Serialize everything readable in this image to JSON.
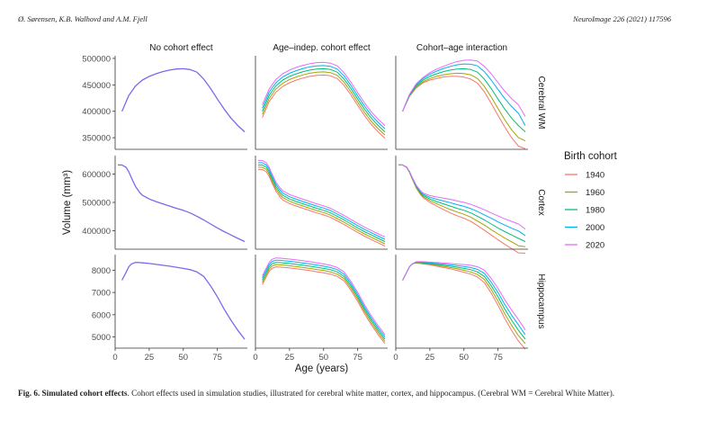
{
  "header": {
    "authors": "Ø. Sørensen, K.B. Walhovd and A.M. Fjell",
    "journal": "NeuroImage 226 (2021) 117596"
  },
  "caption": {
    "label": "Fig. 6.",
    "title": "Simulated cohort effects",
    "text": ". Cohort effects used in simulation studies, illustrated for cerebral white matter, cortex, and hippocampus. (Cerebral WM = Cerebral White Matter)."
  },
  "chart_data": {
    "type": "line",
    "column_titles": [
      "No cohort effect",
      "Age–indep. cohort effect",
      "Cohort–age interaction"
    ],
    "row_titles": [
      "Cerebral WM",
      "Cortex",
      "Hippocampus"
    ],
    "xlabel": "Age (years)",
    "ylabel": "Volume (mm³)",
    "xlim": [
      0,
      97
    ],
    "x_ticks": [
      0,
      25,
      50,
      75
    ],
    "grid": false,
    "legend": {
      "title": "Birth cohort",
      "placement": "right",
      "entries": [
        "1940",
        "1960",
        "1980",
        "2000",
        "2020"
      ],
      "colors": [
        "#F8766D",
        "#A3A500",
        "#00BF7D",
        "#00B0F6",
        "#E76BF3"
      ]
    },
    "no_cohort_color": "#7B68EE",
    "rows": [
      {
        "name": "Cerebral WM",
        "ylim": [
          328000,
          505000
        ],
        "y_ticks": [
          350000,
          400000,
          450000,
          500000
        ],
        "y_tick_labels": [
          "350000",
          "400000",
          "450000",
          "500000"
        ],
        "x": [
          5,
          10,
          15,
          20,
          25,
          30,
          35,
          40,
          45,
          50,
          55,
          60,
          65,
          70,
          75,
          80,
          85,
          90,
          95
        ],
        "baseline": [
          400000,
          430000,
          448000,
          459000,
          466000,
          471000,
          475000,
          478000,
          480000,
          480500,
          479000,
          474000,
          461000,
          443000,
          423000,
          404000,
          387000,
          373000,
          361000
        ],
        "indep_offsets": [
          -12000,
          -6000,
          0,
          6000,
          12000
        ],
        "interaction_offsets": [
          [
            0,
            -2000,
            -4000,
            -5000,
            -7000,
            -9000,
            -10000,
            -12000,
            -14000,
            -16000,
            -18000,
            -21000,
            -24000,
            -28000,
            -31000,
            -34000,
            -37000,
            -39000,
            -32000
          ],
          [
            0,
            -1000,
            -2000,
            -3000,
            -4000,
            -5000,
            -6000,
            -7000,
            -8000,
            -9000,
            -10000,
            -12000,
            -14000,
            -16000,
            -18000,
            -20000,
            -22000,
            -23000,
            -17000
          ],
          [
            0,
            0,
            0,
            0,
            0,
            0,
            0,
            0,
            0,
            0,
            0,
            0,
            0,
            0,
            0,
            0,
            0,
            0,
            0
          ],
          [
            0,
            1000,
            2000,
            3000,
            4000,
            5000,
            6000,
            7000,
            8000,
            9000,
            10000,
            12000,
            14000,
            16000,
            18000,
            20000,
            22000,
            23000,
            12000
          ],
          [
            0,
            2000,
            4000,
            5000,
            7000,
            9000,
            10000,
            12000,
            14000,
            16000,
            18000,
            21000,
            24000,
            28000,
            31000,
            34000,
            37000,
            39000,
            29000
          ]
        ]
      },
      {
        "name": "Cortex",
        "ylim": [
          335000,
          665000
        ],
        "y_ticks": [
          400000,
          500000,
          600000
        ],
        "y_tick_labels": [
          "400000",
          "500000",
          "600000"
        ],
        "x": [
          2,
          5,
          8,
          10,
          12,
          15,
          18,
          20,
          25,
          30,
          35,
          40,
          45,
          50,
          55,
          60,
          65,
          70,
          75,
          80,
          85,
          90,
          95
        ],
        "baseline": [
          632000,
          632000,
          624000,
          608000,
          586000,
          556000,
          535000,
          525000,
          512000,
          503000,
          495000,
          487000,
          479000,
          472000,
          463000,
          451000,
          438000,
          424000,
          410000,
          397000,
          385000,
          373000,
          362000
        ],
        "indep_offsets": [
          -16000,
          -8000,
          0,
          8000,
          16000
        ],
        "interaction_offsets": [
          [
            0,
            0,
            -1000,
            -2000,
            -3000,
            -5000,
            -7000,
            -8000,
            -12000,
            -16000,
            -20000,
            -24000,
            -26000,
            -28000,
            -30000,
            -33000,
            -36000,
            -39000,
            -42000,
            -45000,
            -48000,
            -51000,
            -41000
          ],
          [
            0,
            0,
            0,
            -1000,
            -2000,
            -3000,
            -4000,
            -4000,
            -6000,
            -8000,
            -10000,
            -12000,
            -13000,
            -14000,
            -15000,
            -17000,
            -18000,
            -20000,
            -21000,
            -23000,
            -24000,
            -26000,
            -18000
          ],
          [
            0,
            0,
            0,
            0,
            0,
            0,
            0,
            0,
            0,
            0,
            0,
            0,
            0,
            0,
            0,
            0,
            0,
            0,
            0,
            0,
            0,
            0,
            0
          ],
          [
            0,
            0,
            0,
            1000,
            2000,
            3000,
            4000,
            4000,
            6000,
            8000,
            10000,
            12000,
            13000,
            14000,
            15000,
            17000,
            18000,
            20000,
            21000,
            23000,
            24000,
            26000,
            21000
          ],
          [
            0,
            0,
            1000,
            2000,
            3000,
            5000,
            7000,
            8000,
            12000,
            16000,
            20000,
            24000,
            26000,
            28000,
            30000,
            33000,
            36000,
            39000,
            42000,
            45000,
            48000,
            51000,
            44000
          ]
        ]
      },
      {
        "name": "Hippocampus",
        "ylim": [
          4500,
          8700
        ],
        "y_ticks": [
          5000,
          6000,
          7000,
          8000
        ],
        "y_tick_labels": [
          "5000",
          "6000",
          "7000",
          "8000"
        ],
        "x": [
          5,
          8,
          10,
          12,
          15,
          18,
          20,
          25,
          30,
          35,
          40,
          45,
          50,
          55,
          60,
          65,
          70,
          75,
          80,
          85,
          90,
          95
        ],
        "baseline": [
          7550,
          7900,
          8150,
          8280,
          8350,
          8340,
          8330,
          8300,
          8260,
          8220,
          8180,
          8130,
          8080,
          8020,
          7920,
          7720,
          7300,
          6800,
          6250,
          5750,
          5300,
          4900
        ],
        "indep_offsets": [
          -200,
          -100,
          0,
          100,
          200
        ],
        "interaction_offsets": [
          [
            0,
            0,
            0,
            0,
            -30,
            -40,
            -50,
            -60,
            -80,
            -100,
            -120,
            -140,
            -170,
            -200,
            -230,
            -280,
            -330,
            -380,
            -420,
            -460,
            -480,
            -450
          ],
          [
            0,
            0,
            0,
            0,
            -15,
            -20,
            -25,
            -30,
            -40,
            -50,
            -60,
            -70,
            -85,
            -100,
            -115,
            -140,
            -165,
            -190,
            -210,
            -230,
            -240,
            -200
          ],
          [
            0,
            0,
            0,
            0,
            0,
            0,
            0,
            0,
            0,
            0,
            0,
            0,
            0,
            0,
            0,
            0,
            0,
            0,
            0,
            0,
            0,
            0
          ],
          [
            0,
            0,
            0,
            0,
            15,
            20,
            25,
            30,
            40,
            50,
            60,
            70,
            85,
            100,
            115,
            140,
            165,
            190,
            210,
            230,
            240,
            200
          ],
          [
            0,
            0,
            0,
            0,
            30,
            40,
            50,
            60,
            80,
            100,
            120,
            140,
            170,
            200,
            230,
            280,
            330,
            380,
            420,
            460,
            480,
            420
          ]
        ]
      }
    ]
  }
}
